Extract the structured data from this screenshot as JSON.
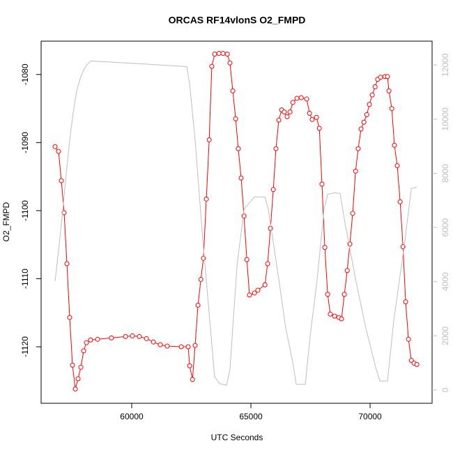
{
  "chart_data": {
    "type": "scatter",
    "title": "ORCAS RF14vlonS O2_FMPD",
    "x_label": "UTC Seconds",
    "y_label": "O2_FMPD",
    "xlim": [
      56200,
      72600
    ],
    "ylim": [
      -1128.3,
      -1075.1
    ],
    "y2lim": [
      -490,
      12880
    ],
    "xticks": [
      60000,
      65000,
      70000
    ],
    "yticks": [
      -1120,
      -1110,
      -1100,
      -1090,
      -1080
    ],
    "y2ticks": [
      0,
      2000,
      4000,
      6000,
      8000,
      10000,
      12000
    ],
    "series": [
      {
        "color": "#ff0000",
        "x": [
          56785,
          56931,
          57048,
          57165,
          57282,
          57399,
          57516,
          57633,
          57750,
          57867,
          57984,
          58100,
          58276,
          58570,
          59150,
          59740,
          60030,
          60320,
          60620,
          60910,
          61200,
          61490,
          62080,
          62370,
          62430,
          62550,
          62660,
          62780,
          62900,
          63010,
          63130,
          63250,
          63360,
          63480,
          63660,
          63830,
          64010,
          64120,
          64240,
          64360,
          64470,
          64590,
          64710,
          64830,
          64940,
          65150,
          65290,
          65590,
          65700,
          65820,
          65940,
          66050,
          66170,
          66290,
          66400,
          66520,
          66640,
          66760,
          66930,
          67110,
          67340,
          67460,
          67570,
          67750,
          67870,
          67980,
          68100,
          68220,
          68330,
          68510,
          68690,
          68800,
          68920,
          69040,
          69150,
          69270,
          69390,
          69500,
          69620,
          69740,
          69860,
          69970,
          70090,
          70210,
          70320,
          70440,
          70620,
          70730,
          70790,
          70910,
          71020,
          71140,
          71260,
          71380,
          71490,
          71610,
          71730,
          71840,
          71960
        ],
        "values": [
          -1090.6,
          -1091.3,
          -1095.6,
          -1100.3,
          -1107.8,
          -1115.7,
          -1122.7,
          -1126.2,
          -1124.7,
          -1123.0,
          -1120.6,
          -1119.4,
          -1119.0,
          -1118.9,
          -1118.7,
          -1118.5,
          -1118.4,
          -1118.5,
          -1118.8,
          -1119.3,
          -1119.7,
          -1119.9,
          -1120.0,
          -1120.0,
          -1122.8,
          -1124.8,
          -1119.8,
          -1113.9,
          -1110.1,
          -1107.0,
          -1098.3,
          -1089.6,
          -1078.8,
          -1077.0,
          -1076.9,
          -1076.9,
          -1077.0,
          -1078.3,
          -1082.4,
          -1086.5,
          -1090.9,
          -1095.2,
          -1100.8,
          -1107.2,
          -1112.4,
          -1112.1,
          -1111.7,
          -1110.9,
          -1107.8,
          -1102.6,
          -1096.9,
          -1090.9,
          -1086.7,
          -1085.2,
          -1085.5,
          -1086.2,
          -1085.5,
          -1084.1,
          -1083.5,
          -1083.4,
          -1083.6,
          -1085.7,
          -1086.6,
          -1086.3,
          -1087.9,
          -1096.1,
          -1105.4,
          -1112.3,
          -1115.2,
          -1115.5,
          -1115.7,
          -1115.9,
          -1112.3,
          -1108.8,
          -1104.9,
          -1100.4,
          -1094.2,
          -1090.9,
          -1088.0,
          -1087.0,
          -1085.9,
          -1084.4,
          -1083.0,
          -1081.8,
          -1080.7,
          -1080.4,
          -1080.3,
          -1080.3,
          -1082.4,
          -1085.0,
          -1090.4,
          -1093.4,
          -1098.7,
          -1105.3,
          -1113.4,
          -1118.9,
          -1122.0,
          -1122.4,
          -1122.6
        ]
      },
      {
        "color": "#bebebe",
        "axis": "y2",
        "x": [
          56785,
          56960,
          57110,
          57250,
          57400,
          57550,
          57690,
          57840,
          57980,
          58130,
          58280,
          58860,
          60320,
          61780,
          62310,
          62430,
          62660,
          62950,
          63250,
          63480,
          63690,
          63980,
          64120,
          64420,
          64710,
          65150,
          65590,
          65730,
          66170,
          66460,
          66760,
          66900,
          67280,
          67490,
          67780,
          68070,
          68220,
          68510,
          68740,
          68950,
          69390,
          69820,
          70260,
          70410,
          70730,
          70990,
          71440,
          71730,
          71960
        ],
        "values": [
          4015,
          5380,
          6670,
          7950,
          9240,
          10270,
          11040,
          11510,
          11810,
          12020,
          12150,
          12120,
          12050,
          11970,
          11940,
          11300,
          9240,
          5890,
          2810,
          490,
          230,
          180,
          750,
          4610,
          6670,
          7130,
          7130,
          6670,
          4090,
          2290,
          1000,
          210,
          210,
          2030,
          4090,
          6670,
          7230,
          7280,
          7260,
          6150,
          4090,
          2290,
          750,
          330,
          330,
          2550,
          5380,
          7440,
          7490
        ]
      }
    ]
  }
}
